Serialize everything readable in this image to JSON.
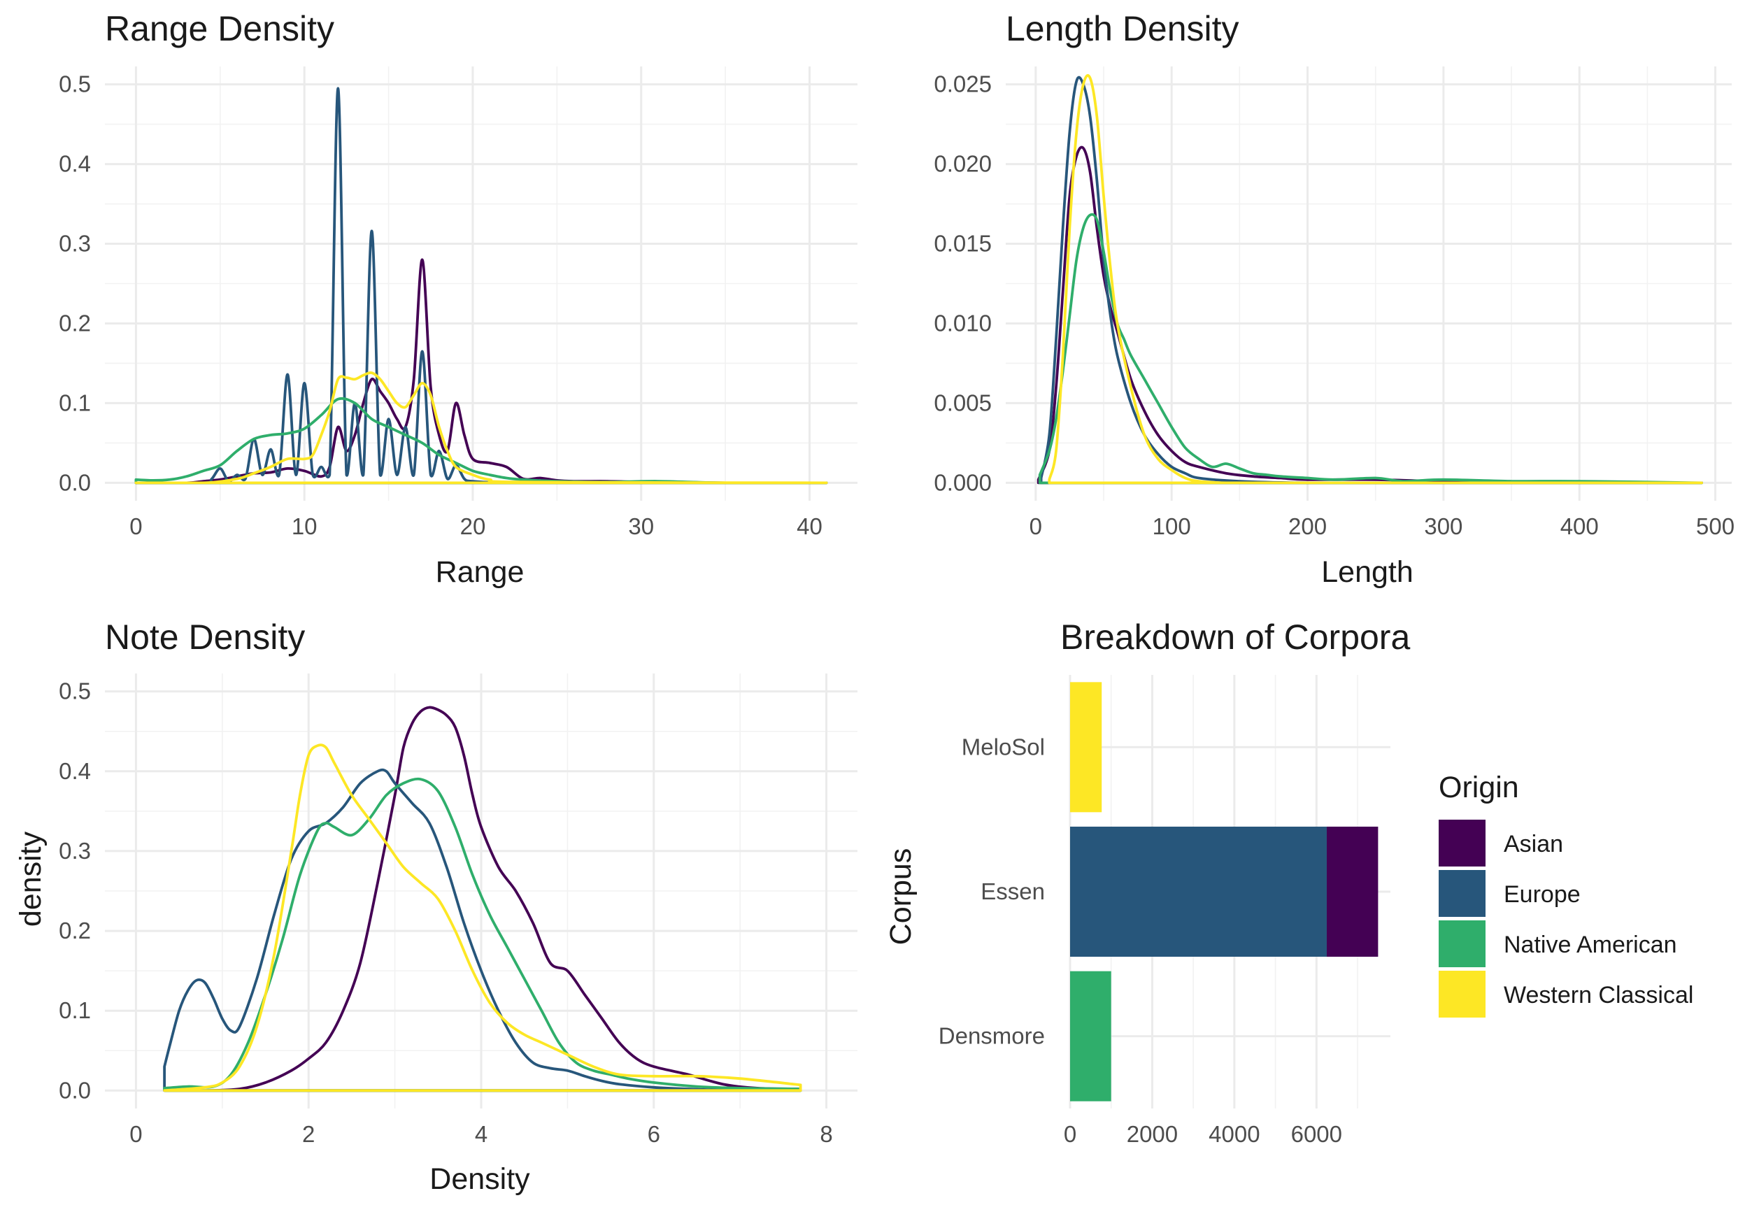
{
  "colors": {
    "Asian": "#440154",
    "Europe": "#27567B",
    "Native American": "#2FAE6B",
    "Western Classical": "#FDE725"
  },
  "legend": {
    "title": "Origin",
    "entries": [
      "Asian",
      "Europe",
      "Native American",
      "Western Classical"
    ]
  },
  "chart_data": [
    {
      "type": "line",
      "title": "Range Density",
      "xlabel": "Range",
      "ylabel": "",
      "xlim": [
        0,
        41
      ],
      "ylim": [
        0,
        0.5
      ],
      "xticks": [
        "0",
        "10",
        "20",
        "30",
        "40"
      ],
      "yticks": [
        "0.0",
        "0.1",
        "0.2",
        "0.3",
        "0.4",
        "0.5"
      ],
      "grid": true,
      "series": [
        {
          "name": "Asian",
          "x": [
            0,
            3,
            4,
            5,
            6,
            7,
            8,
            9,
            10,
            11,
            11.5,
            12,
            12.5,
            13,
            13.5,
            14,
            14.5,
            15,
            15.5,
            16,
            16.5,
            17,
            17.5,
            18,
            18.5,
            19,
            19.5,
            20,
            21,
            22,
            23,
            24,
            25,
            26,
            28,
            30,
            32,
            35,
            41
          ],
          "y": [
            0,
            0,
            0.002,
            0.004,
            0.008,
            0.012,
            0.013,
            0.018,
            0.015,
            0.008,
            0.02,
            0.07,
            0.04,
            0.06,
            0.1,
            0.13,
            0.115,
            0.1,
            0.08,
            0.07,
            0.13,
            0.28,
            0.12,
            0.06,
            0.04,
            0.1,
            0.06,
            0.03,
            0.025,
            0.02,
            0.005,
            0.006,
            0.003,
            0.002,
            0.002,
            0.001,
            0.001,
            0,
            0
          ]
        },
        {
          "name": "Europe",
          "x": [
            0,
            4,
            4.5,
            5,
            5.5,
            6,
            6.5,
            7,
            7.5,
            8,
            8.5,
            9,
            9.5,
            10,
            10.5,
            11,
            11.5,
            12,
            12.5,
            13,
            13.5,
            14,
            14.5,
            15,
            15.5,
            16,
            16.5,
            17,
            17.5,
            18,
            18.5,
            19,
            19.5,
            20,
            22,
            25,
            41
          ],
          "y": [
            0,
            0,
            0.005,
            0.018,
            0.002,
            0.01,
            0.005,
            0.055,
            0.01,
            0.042,
            0.01,
            0.136,
            0.01,
            0.125,
            0.01,
            0.02,
            0.01,
            0.495,
            0.01,
            0.1,
            0.01,
            0.316,
            0.01,
            0.08,
            0.01,
            0.07,
            0.01,
            0.165,
            0.01,
            0.04,
            0.005,
            0.022,
            0.005,
            0.002,
            0,
            0,
            0
          ]
        },
        {
          "name": "Native American",
          "x": [
            0,
            1,
            2,
            3,
            4,
            5,
            6,
            7,
            8,
            9,
            10,
            11,
            12,
            13,
            14,
            15,
            16,
            17,
            18,
            19,
            20,
            21,
            22,
            23,
            25,
            28,
            31,
            35,
            41
          ],
          "y": [
            0.004,
            0.003,
            0.004,
            0.008,
            0.015,
            0.022,
            0.04,
            0.055,
            0.06,
            0.062,
            0.068,
            0.085,
            0.105,
            0.1,
            0.08,
            0.07,
            0.06,
            0.05,
            0.035,
            0.025,
            0.015,
            0.01,
            0.006,
            0.004,
            0.002,
            0.001,
            0.002,
            0,
            0
          ]
        },
        {
          "name": "Western Classical",
          "x": [
            0,
            4,
            6,
            7,
            8,
            9,
            10,
            10.5,
            11,
            11.5,
            12,
            12.5,
            13,
            13.5,
            14,
            14.5,
            15,
            15.5,
            16,
            16.5,
            17,
            17.5,
            18,
            18.5,
            19,
            20,
            21,
            23,
            41
          ],
          "y": [
            0,
            0,
            0.005,
            0.012,
            0.02,
            0.03,
            0.03,
            0.035,
            0.06,
            0.09,
            0.13,
            0.132,
            0.13,
            0.135,
            0.138,
            0.13,
            0.115,
            0.1,
            0.095,
            0.11,
            0.125,
            0.11,
            0.07,
            0.04,
            0.02,
            0.01,
            0.004,
            0.001,
            0
          ]
        }
      ]
    },
    {
      "type": "line",
      "title": "Length Density",
      "xlabel": "Length",
      "ylabel": "",
      "xlim": [
        0,
        490
      ],
      "ylim": [
        0,
        0.025
      ],
      "xticks": [
        "0",
        "100",
        "200",
        "300",
        "400",
        "500"
      ],
      "yticks": [
        "0.000",
        "0.005",
        "0.010",
        "0.015",
        "0.020",
        "0.025"
      ],
      "grid": true,
      "series": [
        {
          "name": "Asian",
          "x": [
            2,
            10,
            15,
            20,
            25,
            30,
            35,
            40,
            45,
            50,
            55,
            60,
            70,
            80,
            90,
            100,
            110,
            120,
            140,
            160,
            180,
            200,
            250,
            300,
            400,
            490
          ],
          "y": [
            0.0002,
            0.002,
            0.006,
            0.012,
            0.018,
            0.0205,
            0.021,
            0.0195,
            0.016,
            0.013,
            0.011,
            0.0095,
            0.0065,
            0.0045,
            0.003,
            0.002,
            0.0013,
            0.001,
            0.0006,
            0.0004,
            0.0003,
            0.0002,
            0.0002,
            0.0001,
            0,
            0
          ]
        },
        {
          "name": "Europe",
          "x": [
            4,
            10,
            15,
            20,
            25,
            30,
            35,
            40,
            45,
            50,
            55,
            60,
            70,
            80,
            90,
            100,
            110,
            120,
            150,
            200,
            300,
            490
          ],
          "y": [
            0.0003,
            0.003,
            0.009,
            0.016,
            0.022,
            0.0252,
            0.025,
            0.023,
            0.019,
            0.014,
            0.0105,
            0.008,
            0.005,
            0.003,
            0.0018,
            0.001,
            0.0006,
            0.0003,
            0.0001,
            0,
            0,
            0
          ]
        },
        {
          "name": "Native American",
          "x": [
            3,
            10,
            15,
            20,
            25,
            30,
            35,
            40,
            45,
            50,
            55,
            60,
            65,
            70,
            80,
            90,
            100,
            110,
            120,
            130,
            140,
            150,
            160,
            170,
            180,
            200,
            220,
            250,
            270,
            300,
            350,
            400,
            490
          ],
          "y": [
            0.0005,
            0.002,
            0.004,
            0.007,
            0.0105,
            0.014,
            0.016,
            0.0168,
            0.0165,
            0.0145,
            0.012,
            0.01,
            0.009,
            0.008,
            0.0065,
            0.005,
            0.0035,
            0.0022,
            0.0015,
            0.001,
            0.0012,
            0.0009,
            0.0006,
            0.0005,
            0.0004,
            0.0003,
            0.0002,
            0.0003,
            0.0001,
            0.0002,
            0.0001,
            0.0001,
            0
          ]
        },
        {
          "name": "Western Classical",
          "x": [
            10,
            15,
            20,
            25,
            30,
            35,
            40,
            45,
            50,
            55,
            60,
            70,
            80,
            90,
            100,
            110,
            120,
            140,
            160,
            200,
            490
          ],
          "y": [
            0.0002,
            0.002,
            0.008,
            0.016,
            0.022,
            0.025,
            0.0254,
            0.023,
            0.018,
            0.0135,
            0.01,
            0.006,
            0.003,
            0.0015,
            0.0008,
            0.0003,
            0.0001,
            0,
            0,
            0,
            0
          ]
        }
      ]
    },
    {
      "type": "line",
      "title": "Note Density",
      "xlabel": "Density",
      "ylabel": "density",
      "xlim": [
        0,
        8
      ],
      "ylim": [
        0,
        0.5
      ],
      "xticks": [
        "0",
        "2",
        "4",
        "6",
        "8"
      ],
      "yticks": [
        "0.0",
        "0.1",
        "0.2",
        "0.3",
        "0.4",
        "0.5"
      ],
      "grid": true,
      "series": [
        {
          "name": "Asian",
          "x": [
            0.33,
            0.8,
            1.2,
            1.5,
            1.8,
            2.0,
            2.2,
            2.4,
            2.6,
            2.8,
            3.0,
            3.1,
            3.2,
            3.3,
            3.4,
            3.5,
            3.6,
            3.7,
            3.8,
            3.9,
            4.0,
            4.2,
            4.4,
            4.6,
            4.8,
            5.0,
            5.2,
            5.4,
            5.6,
            5.8,
            6.0,
            6.4,
            6.8,
            7.2,
            7.7
          ],
          "y": [
            0,
            0,
            0.002,
            0.01,
            0.025,
            0.04,
            0.06,
            0.1,
            0.16,
            0.26,
            0.37,
            0.43,
            0.46,
            0.475,
            0.48,
            0.477,
            0.47,
            0.455,
            0.42,
            0.37,
            0.33,
            0.28,
            0.25,
            0.21,
            0.16,
            0.15,
            0.12,
            0.09,
            0.06,
            0.04,
            0.03,
            0.02,
            0.008,
            0.003,
            0.002
          ]
        },
        {
          "name": "Europe",
          "x": [
            0.33,
            0.4,
            0.5,
            0.6,
            0.7,
            0.8,
            0.9,
            1.0,
            1.1,
            1.2,
            1.4,
            1.6,
            1.8,
            2.0,
            2.2,
            2.4,
            2.6,
            2.8,
            2.9,
            3.0,
            3.2,
            3.4,
            3.6,
            3.8,
            4.0,
            4.2,
            4.4,
            4.6,
            4.8,
            5.0,
            5.2,
            5.4,
            5.6,
            6.0,
            6.4,
            7.0,
            7.7
          ],
          "y": [
            0.03,
            0.06,
            0.1,
            0.125,
            0.138,
            0.135,
            0.115,
            0.09,
            0.075,
            0.08,
            0.14,
            0.22,
            0.29,
            0.325,
            0.335,
            0.355,
            0.385,
            0.4,
            0.4,
            0.385,
            0.36,
            0.335,
            0.28,
            0.21,
            0.15,
            0.1,
            0.06,
            0.035,
            0.028,
            0.025,
            0.018,
            0.012,
            0.008,
            0.004,
            0.002,
            0,
            0
          ]
        },
        {
          "name": "Native American",
          "x": [
            0.33,
            0.6,
            0.9,
            1.1,
            1.3,
            1.5,
            1.7,
            1.9,
            2.1,
            2.2,
            2.3,
            2.5,
            2.7,
            2.9,
            3.1,
            3.3,
            3.5,
            3.7,
            3.9,
            4.1,
            4.3,
            4.5,
            4.7,
            4.9,
            5.1,
            5.3,
            5.5,
            5.7,
            6.0,
            6.5,
            7.0,
            7.7
          ],
          "y": [
            0.003,
            0.005,
            0.005,
            0.02,
            0.06,
            0.12,
            0.19,
            0.27,
            0.325,
            0.335,
            0.33,
            0.32,
            0.34,
            0.37,
            0.385,
            0.39,
            0.375,
            0.33,
            0.27,
            0.22,
            0.18,
            0.14,
            0.1,
            0.06,
            0.035,
            0.025,
            0.02,
            0.015,
            0.01,
            0.005,
            0.003,
            0.002
          ]
        },
        {
          "name": "Western Classical",
          "x": [
            0.33,
            0.8,
            1.0,
            1.2,
            1.4,
            1.6,
            1.8,
            1.9,
            2.0,
            2.1,
            2.2,
            2.3,
            2.5,
            2.7,
            2.9,
            3.1,
            3.3,
            3.5,
            3.7,
            3.9,
            4.1,
            4.3,
            4.5,
            4.7,
            5.0,
            5.3,
            5.6,
            6.0,
            6.5,
            7.0,
            7.7
          ],
          "y": [
            0,
            0.004,
            0.01,
            0.03,
            0.08,
            0.17,
            0.3,
            0.37,
            0.42,
            0.432,
            0.43,
            0.41,
            0.37,
            0.34,
            0.31,
            0.28,
            0.26,
            0.24,
            0.2,
            0.15,
            0.11,
            0.085,
            0.07,
            0.06,
            0.045,
            0.03,
            0.02,
            0.018,
            0.018,
            0.015,
            0.007
          ]
        }
      ]
    },
    {
      "type": "bar",
      "orientation": "horizontal",
      "stacked": true,
      "title": "Breakdown of Corpora",
      "xlabel": "",
      "ylabel": "Corpus",
      "xlim": [
        0,
        7800
      ],
      "xticks": [
        "0",
        "2000",
        "4000",
        "6000"
      ],
      "categories": [
        "MeloSol",
        "Essen",
        "Densmore"
      ],
      "grid": true,
      "series": [
        {
          "name": "Europe",
          "values": [
            0,
            6250,
            0
          ]
        },
        {
          "name": "Asian",
          "values": [
            0,
            1250,
            0
          ]
        },
        {
          "name": "Native American",
          "values": [
            0,
            0,
            1000
          ]
        },
        {
          "name": "Western Classical",
          "values": [
            770,
            0,
            0
          ]
        }
      ]
    }
  ]
}
